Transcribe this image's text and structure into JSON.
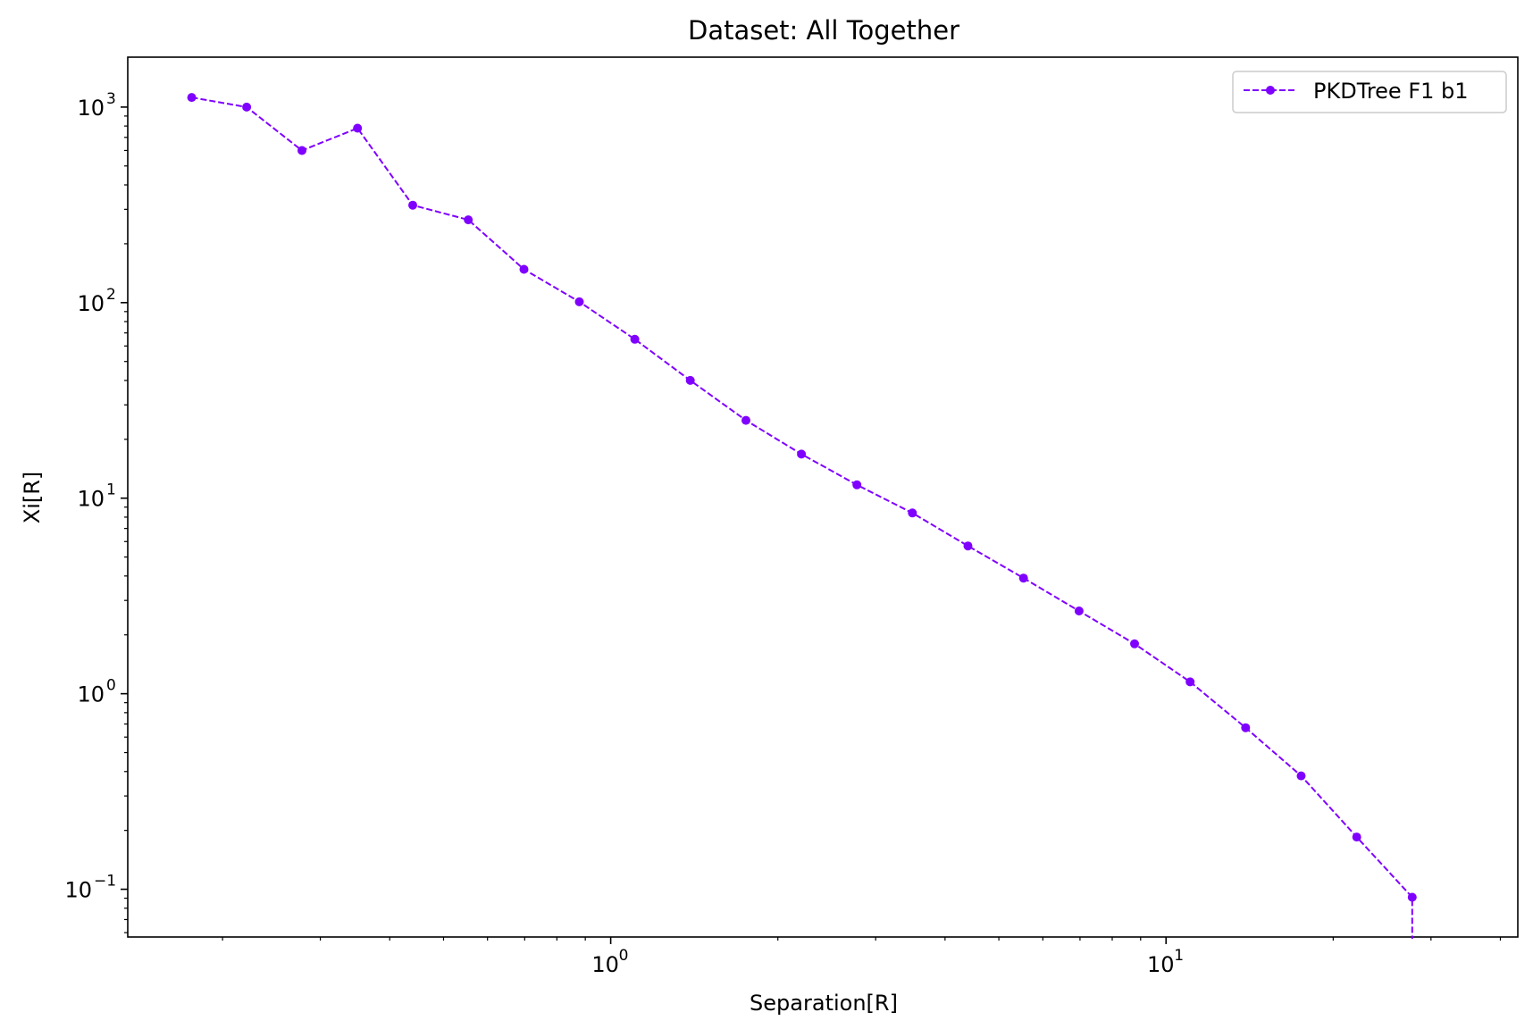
{
  "chart_data": {
    "type": "line",
    "title": "Dataset: All Together",
    "xlabel": "Separation[R]",
    "ylabel": "Xi[R]",
    "xscale": "log",
    "yscale": "log",
    "xlim": [
      0.135,
      43
    ],
    "ylim": [
      0.057,
      1800
    ],
    "grid": false,
    "legend_position": "top-right",
    "x_ticks": [
      {
        "value": 1,
        "base": "10",
        "exp": "0"
      },
      {
        "value": 10,
        "base": "10",
        "exp": "1"
      }
    ],
    "y_ticks": [
      {
        "value": 0.1,
        "base": "10",
        "exp": "−1"
      },
      {
        "value": 1,
        "base": "10",
        "exp": "0"
      },
      {
        "value": 10,
        "base": "10",
        "exp": "1"
      },
      {
        "value": 100,
        "base": "10",
        "exp": "2"
      },
      {
        "value": 1000,
        "base": "10",
        "exp": "3"
      }
    ],
    "series": [
      {
        "name": "PKDTree F1 b1",
        "color": "#7f00ff",
        "line_style": "dashed",
        "marker": "circle",
        "x": [
          0.176,
          0.221,
          0.278,
          0.35,
          0.44,
          0.554,
          0.698,
          0.878,
          1.105,
          1.391,
          1.752,
          2.205,
          2.776,
          3.494,
          4.399,
          5.538,
          6.972,
          8.777,
          11.05,
          13.91,
          17.51,
          22.05,
          27.75
        ],
        "y": [
          1120,
          1000,
          600,
          780,
          315,
          265,
          148,
          101,
          65,
          40,
          25,
          16.8,
          11.7,
          8.4,
          5.7,
          3.9,
          2.65,
          1.8,
          1.15,
          0.67,
          0.38,
          0.185,
          0.091
        ],
        "tail_drop_to_axis": true
      }
    ]
  }
}
